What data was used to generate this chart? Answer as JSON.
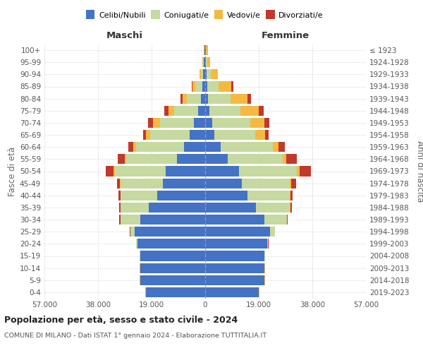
{
  "age_groups": [
    "0-4",
    "5-9",
    "10-14",
    "15-19",
    "20-24",
    "25-29",
    "30-34",
    "35-39",
    "40-44",
    "45-49",
    "50-54",
    "55-59",
    "60-64",
    "65-69",
    "70-74",
    "75-79",
    "80-84",
    "85-89",
    "90-94",
    "95-99",
    "100+"
  ],
  "birth_years": [
    "2019-2023",
    "2014-2018",
    "2009-2013",
    "2004-2008",
    "1999-2003",
    "1994-1998",
    "1989-1993",
    "1984-1988",
    "1979-1983",
    "1974-1978",
    "1969-1973",
    "1964-1968",
    "1959-1963",
    "1954-1958",
    "1949-1953",
    "1944-1948",
    "1939-1943",
    "1934-1938",
    "1929-1933",
    "1924-1928",
    "≤ 1923"
  ],
  "colors": {
    "celibi": "#4472c4",
    "coniugati": "#c5d9a0",
    "vedovi": "#f4b942",
    "divorziati": "#c0392b"
  },
  "maschi": {
    "celibi": [
      21000,
      23000,
      23000,
      23000,
      24000,
      25000,
      23000,
      20000,
      17000,
      15000,
      14000,
      10000,
      7500,
      5500,
      4000,
      2500,
      1500,
      1000,
      700,
      500,
      250
    ],
    "coniugati": [
      100,
      100,
      100,
      200,
      500,
      1500,
      7000,
      10000,
      13000,
      15000,
      18000,
      18000,
      17000,
      14000,
      12000,
      8500,
      5000,
      2500,
      900,
      300,
      100
    ],
    "vedovi": [
      50,
      50,
      50,
      50,
      50,
      50,
      50,
      100,
      100,
      200,
      500,
      500,
      1000,
      1500,
      2500,
      2000,
      1500,
      1000,
      500,
      200,
      100
    ],
    "divorziati": [
      50,
      50,
      50,
      50,
      50,
      100,
      400,
      500,
      600,
      1000,
      2800,
      2500,
      1800,
      1000,
      1800,
      1500,
      700,
      200,
      0,
      0,
      0
    ]
  },
  "femmine": {
    "celibi": [
      19000,
      21000,
      21000,
      21000,
      22000,
      23000,
      21000,
      18000,
      15000,
      13000,
      12000,
      8000,
      5500,
      3200,
      2500,
      1600,
      1100,
      700,
      500,
      300,
      200
    ],
    "coniugati": [
      100,
      100,
      100,
      150,
      300,
      1700,
      8000,
      12000,
      15000,
      17000,
      20500,
      19500,
      18500,
      14500,
      13500,
      11000,
      8000,
      4000,
      1500,
      500,
      100
    ],
    "vedovi": [
      50,
      50,
      50,
      50,
      50,
      50,
      60,
      150,
      250,
      500,
      900,
      1200,
      2000,
      3500,
      5000,
      6500,
      6000,
      4500,
      2500,
      1000,
      600
    ],
    "divorziati": [
      50,
      50,
      50,
      50,
      50,
      60,
      250,
      600,
      800,
      1700,
      4200,
      3800,
      2200,
      1300,
      1700,
      1600,
      1100,
      700,
      100,
      0,
      0
    ]
  },
  "xlim": 57000,
  "xtick_positions": [
    -57000,
    -38000,
    -19000,
    0,
    19000,
    38000,
    57000
  ],
  "xtick_labels": [
    "57.000",
    "38.000",
    "19.000",
    "0",
    "19.000",
    "38.000",
    "57.000"
  ],
  "title": "Popolazione per età, sesso e stato civile - 2024",
  "subtitle": "COMUNE DI MILANO - Dati ISTAT 1° gennaio 2024 - Elaborazione TUTTITALIA.IT",
  "ylabel_left": "Fasce di età",
  "ylabel_right": "Anni di nascita",
  "header_maschi": "Maschi",
  "header_femmine": "Femmine",
  "legend_labels": [
    "Celibi/Nubili",
    "Coniugati/e",
    "Vedovi/e",
    "Divorziati/e"
  ],
  "background_color": "#ffffff",
  "grid_color": "#cccccc"
}
